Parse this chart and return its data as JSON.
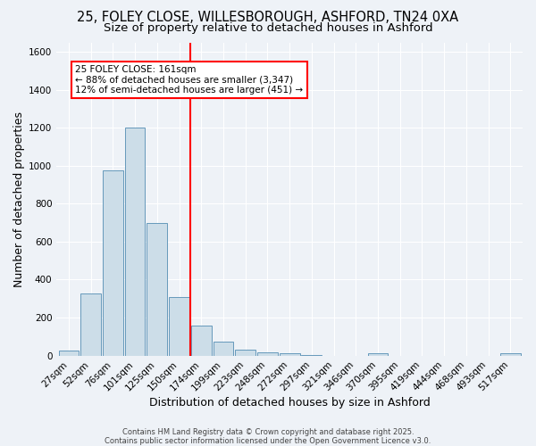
{
  "title1": "25, FOLEY CLOSE, WILLESBOROUGH, ASHFORD, TN24 0XA",
  "title2": "Size of property relative to detached houses in Ashford",
  "xlabel": "Distribution of detached houses by size in Ashford",
  "ylabel": "Number of detached properties",
  "bin_labels": [
    "27sqm",
    "52sqm",
    "76sqm",
    "101sqm",
    "125sqm",
    "150sqm",
    "174sqm",
    "199sqm",
    "223sqm",
    "248sqm",
    "272sqm",
    "297sqm",
    "321sqm",
    "346sqm",
    "370sqm",
    "395sqm",
    "419sqm",
    "444sqm",
    "468sqm",
    "493sqm",
    "517sqm"
  ],
  "bar_heights": [
    25,
    325,
    975,
    1200,
    700,
    310,
    160,
    75,
    30,
    15,
    10,
    5,
    0,
    0,
    10,
    0,
    0,
    0,
    0,
    0,
    10
  ],
  "bar_color": "#ccdde8",
  "bar_edge_color": "#6699bb",
  "vline_x": 5.5,
  "vline_color": "red",
  "annotation_text": "25 FOLEY CLOSE: 161sqm\n← 88% of detached houses are smaller (3,347)\n12% of semi-detached houses are larger (451) →",
  "annotation_box_color": "white",
  "annotation_box_edge": "red",
  "footnote1": "Contains HM Land Registry data © Crown copyright and database right 2025.",
  "footnote2": "Contains public sector information licensed under the Open Government Licence v3.0.",
  "ylim": [
    0,
    1650
  ],
  "yticks": [
    0,
    200,
    400,
    600,
    800,
    1000,
    1200,
    1400,
    1600
  ],
  "bg_color": "#eef2f7",
  "grid_color": "#ffffff",
  "title_fontsize": 10.5,
  "subtitle_fontsize": 9.5,
  "axis_label_fontsize": 9,
  "tick_fontsize": 7.5,
  "footnote_fontsize": 6,
  "annot_fontsize": 7.5
}
